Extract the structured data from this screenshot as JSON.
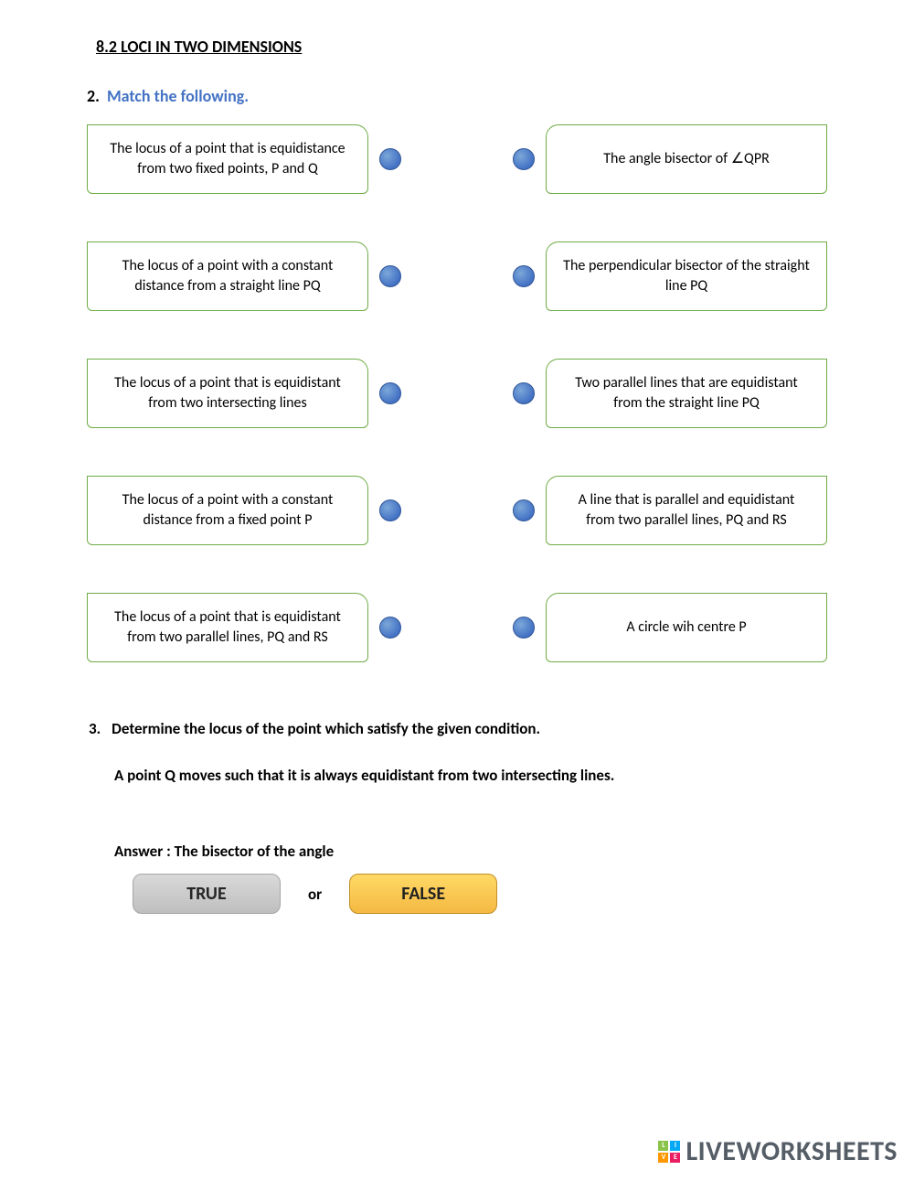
{
  "section_title": "8.2  LOCI IN TWO DIMENSIONS",
  "q2": {
    "number": "2.",
    "text": "Match the following.",
    "colors": {
      "card_border": "#6fac46",
      "dot_fill": "#4472c4",
      "dot_border": "#2f5597",
      "heading_blue": "#4472c4"
    },
    "rows": [
      {
        "left": "The locus of a point that is equidistance from two fixed points, P and  Q",
        "right": "The angle bisector of  ∠QPR"
      },
      {
        "left": "The locus of a point with a constant distance from a straight line PQ",
        "right": "The perpendicular bisector of the straight line PQ"
      },
      {
        "left": "The locus of a point that is equidistant from two intersecting lines",
        "right": "Two parallel lines that are equidistant from the straight line PQ"
      },
      {
        "left": "The locus of a point with a constant distance from a fixed point P",
        "right": "A line that is parallel and equidistant from two parallel lines, PQ and RS"
      },
      {
        "left": "The locus of a point that is equidistant from two parallel lines, PQ and RS",
        "right": "A circle wih centre P"
      }
    ]
  },
  "q3": {
    "number": "3.",
    "text": "Determine the locus of the point which satisfy the given condition.",
    "sub": "A point Q moves such that it is always equidistant from two intersecting lines.",
    "answer_label": "Answer : The bisector of the angle",
    "true_label": "TRUE",
    "or_label": "or",
    "false_label": "FALSE",
    "colors": {
      "true_bg": "#cfcfcf",
      "false_bg": "#f8c255"
    }
  },
  "watermark": {
    "text": "LIVEWORKSHEETS",
    "icon_colors": [
      "#8bc34a",
      "#03a9f4",
      "#ff9800",
      "#e91e63"
    ],
    "icon_letters": [
      "L",
      "I",
      "V",
      "E"
    ]
  }
}
